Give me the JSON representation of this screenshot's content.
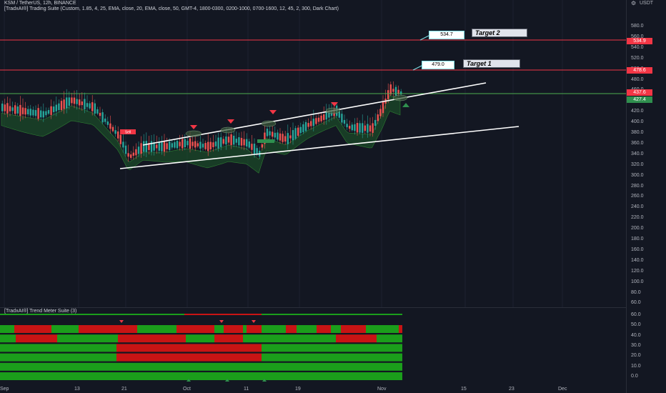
{
  "header": {
    "symbol_line": "KSM / TetherUS, 12h, BINANCE",
    "indicator_line": "[TradxAI®] Trading Suite (Custom, 1.85, 4, 25, EMA, close, 20, EMA, close, 50, GMT-4, 1800-0300, 0200-1000, 0700-1600, 12, 45, 2, 300, Dark Chart)"
  },
  "indicator_pane": {
    "title": "[TradxAI®] Trend Meter Suite (3)"
  },
  "price_axis": {
    "currency": "USDT",
    "ticks": [
      "580.0",
      "560.0",
      "540.0",
      "520.0",
      "500.0",
      "480.0",
      "460.0",
      "440.0",
      "420.0",
      "400.0",
      "380.0",
      "360.0",
      "340.0",
      "320.0",
      "300.0",
      "280.0",
      "260.0",
      "240.0",
      "220.0",
      "200.0",
      "180.0",
      "160.0",
      "140.0",
      "120.0",
      "100.0",
      "80.0",
      "60.0"
    ],
    "tags": {
      "t5349": "534.9",
      "t4786": "478.6",
      "t4376": "437.6",
      "t4274": "427.4"
    }
  },
  "indicator_axis": {
    "ticks": [
      "60.0",
      "50.0",
      "40.0",
      "30.0",
      "20.0",
      "10.0",
      "0.0"
    ]
  },
  "time_axis": {
    "labels": [
      "Sep",
      "13",
      "21",
      "Oct",
      "11",
      "19",
      "Nov",
      "15",
      "23",
      "Dec"
    ]
  },
  "annotations": {
    "bubble_1": "479.0",
    "bubble_2": "534.7",
    "target_1": "Target 1",
    "target_2": "Target 2",
    "sell_label": "Sell"
  },
  "colors": {
    "background": "#131722",
    "up": "#26a69a",
    "down": "#ef5350",
    "target_line": "#f23645",
    "support_line": "#4caf50",
    "meter_green": "#1b9e1b",
    "meter_red": "#c81414"
  }
}
